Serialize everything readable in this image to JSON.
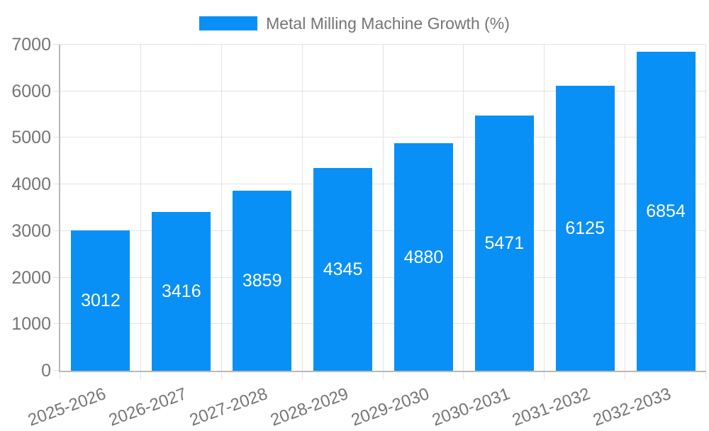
{
  "chart_data": {
    "type": "bar",
    "title": "Metal Milling Machine Growth (%)",
    "series_name": "Metal Milling Machine Growth (%)",
    "categories": [
      "2025-2026",
      "2026-2027",
      "2027-2028",
      "2028-2029",
      "2029-2030",
      "2030-2031",
      "2031-2032",
      "2032-2033"
    ],
    "values": [
      3012,
      3416,
      3859,
      4345,
      4880,
      5471,
      6125,
      6854
    ],
    "xlabel": "",
    "ylabel": "",
    "ylim": [
      0,
      7000
    ],
    "ytick_step": 1000,
    "yticks": [
      0,
      1000,
      2000,
      3000,
      4000,
      5000,
      6000,
      7000
    ],
    "grid": true,
    "legend_position": "top",
    "colors": {
      "bar": "#0990f6",
      "bar_label": "#ffffff",
      "tick_text": "#757575",
      "legend_text": "#757575",
      "gridline": "#e3e3e3",
      "axis_border": "#b8b8b8",
      "background": "#ffffff"
    }
  }
}
